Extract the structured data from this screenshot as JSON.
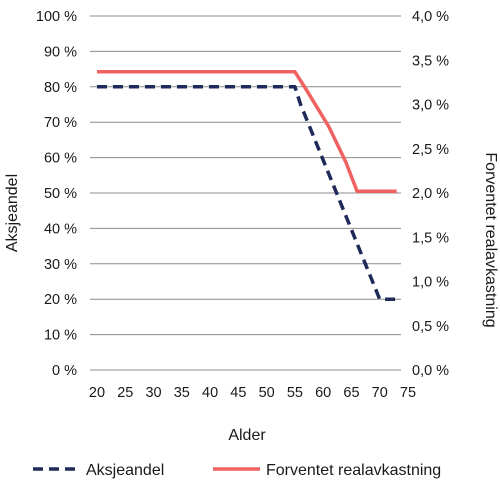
{
  "chart_data": {
    "type": "line",
    "xlabel": "Alder",
    "ylabel_left": "Aksjeandel",
    "ylabel_right": "Forventet realavkastning",
    "x_ticks": [
      "20",
      "25",
      "30",
      "35",
      "40",
      "45",
      "50",
      "55",
      "60",
      "65",
      "70",
      "75"
    ],
    "y_left_ticks": [
      "0 %",
      "10 %",
      "20 %",
      "30 %",
      "40 %",
      "50 %",
      "60 %",
      "70 %",
      "80 %",
      "90 %",
      "100 %"
    ],
    "y_right_ticks": [
      "0,0 %",
      "0,5 %",
      "1,0 %",
      "1,5 %",
      "2,0 %",
      "2,5 %",
      "3,0 %",
      "3,5 %",
      "4,0 %"
    ],
    "xlim": [
      20,
      75
    ],
    "ylim_left": [
      0,
      100
    ],
    "ylim_right": [
      0,
      4.0
    ],
    "grid": "horizontal",
    "legend_position": "bottom",
    "series": [
      {
        "name": "Aksjeandel",
        "axis": "left",
        "style": "dashed",
        "color": "#1f2a5a",
        "x": [
          20,
          55,
          56,
          70,
          73
        ],
        "y": [
          80,
          80,
          75,
          20,
          20
        ]
      },
      {
        "name": "Forventet realavkastning",
        "axis": "right",
        "style": "solid",
        "color": "#f06262",
        "x": [
          20,
          55,
          57,
          61,
          64,
          66,
          73
        ],
        "y": [
          3.37,
          3.37,
          3.17,
          2.75,
          2.35,
          2.02,
          2.02
        ]
      }
    ]
  }
}
